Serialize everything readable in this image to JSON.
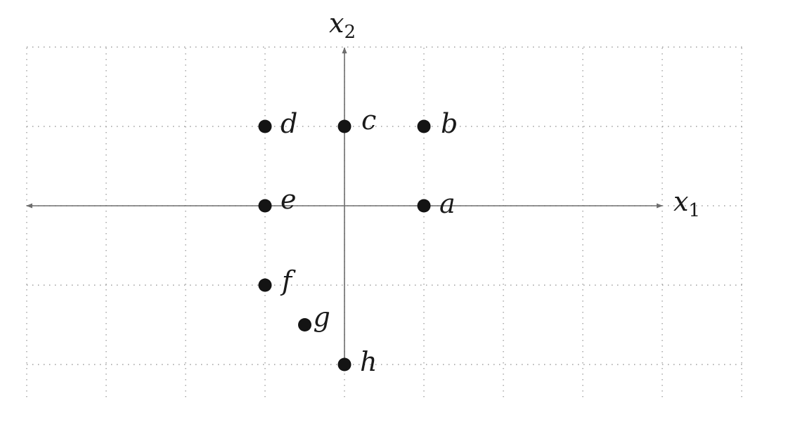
{
  "axes": {
    "x_label": "x",
    "x_sub": "1",
    "y_label": "x",
    "y_sub": "2"
  },
  "grid": {
    "visible": true,
    "style": "dotted",
    "x_range": [
      -4,
      5
    ],
    "y_range": [
      -2.5,
      2
    ]
  },
  "points": [
    {
      "label": "a",
      "x": 1,
      "y": 0
    },
    {
      "label": "b",
      "x": 1,
      "y": 1
    },
    {
      "label": "c",
      "x": 0,
      "y": 1
    },
    {
      "label": "d",
      "x": -1,
      "y": 1
    },
    {
      "label": "e",
      "x": -1,
      "y": 0
    },
    {
      "label": "f",
      "x": -1,
      "y": -1
    },
    {
      "label": "g",
      "x": -0.5,
      "y": -1.5
    },
    {
      "label": "h",
      "x": 0,
      "y": -2
    }
  ],
  "colors": {
    "axis": "#6e6e6e",
    "grid": "#9a9a9a",
    "point": "#141414"
  }
}
